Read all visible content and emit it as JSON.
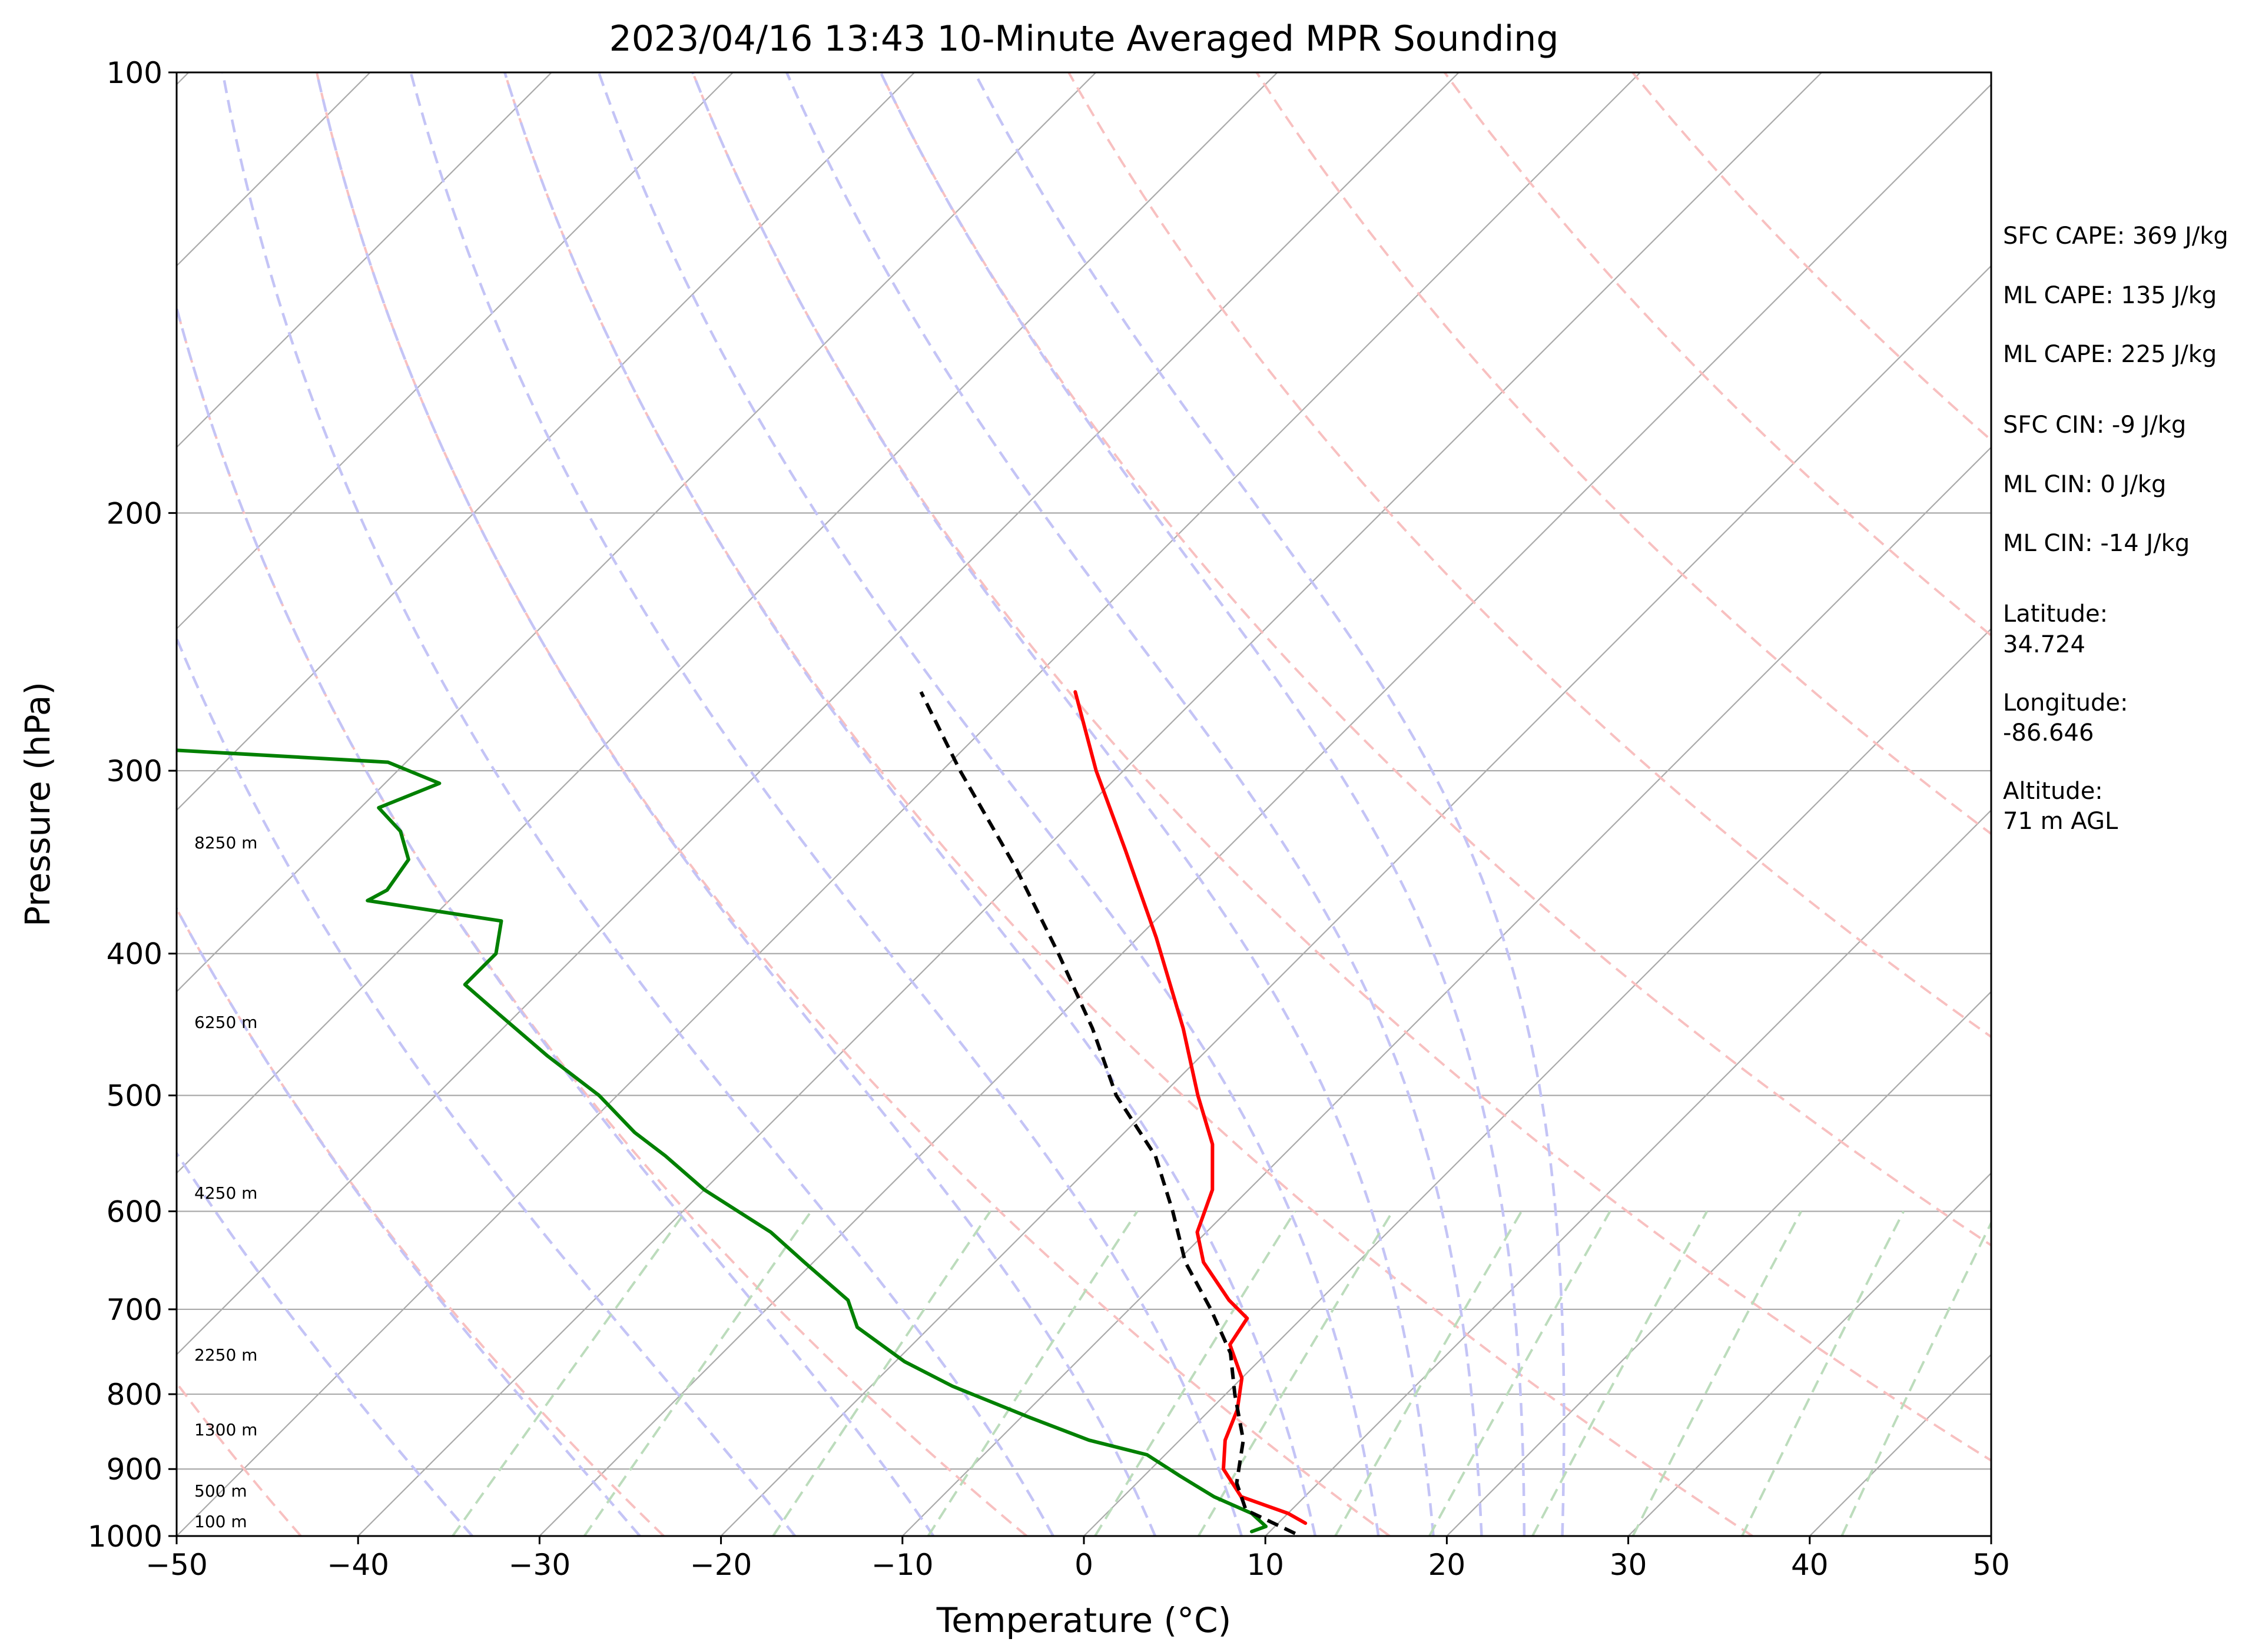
{
  "chart_data": {
    "type": "line",
    "subtype": "skew-t log-p sounding",
    "title": "2023/04/16 13:43 10-Minute Averaged MPR Sounding",
    "xlabel": "Temperature (°C)",
    "ylabel": "Pressure (hPa)",
    "xlim": [
      -50,
      50
    ],
    "ylim": [
      1000,
      100
    ],
    "y_scale": "log",
    "x_ticks": [
      "−50",
      "−40",
      "−30",
      "−20",
      "−10",
      "0",
      "10",
      "20",
      "30",
      "40",
      "50"
    ],
    "y_ticks": [
      "100",
      "200",
      "300",
      "400",
      "500",
      "600",
      "700",
      "800",
      "900",
      "1000"
    ],
    "grid": "horizontal isobars and skewed isotherms",
    "series": [
      {
        "role": "temperature",
        "color": "#ff0000",
        "points": [
          {
            "p": 265,
            "t": -47.0
          },
          {
            "p": 300,
            "t": -41.5
          },
          {
            "p": 340,
            "t": -35.5
          },
          {
            "p": 390,
            "t": -29.0
          },
          {
            "p": 450,
            "t": -22.5
          },
          {
            "p": 500,
            "t": -18.0
          },
          {
            "p": 540,
            "t": -14.5
          },
          {
            "p": 580,
            "t": -12.0
          },
          {
            "p": 620,
            "t": -10.5
          },
          {
            "p": 650,
            "t": -8.5
          },
          {
            "p": 690,
            "t": -5.0
          },
          {
            "p": 710,
            "t": -3.0
          },
          {
            "p": 740,
            "t": -2.5
          },
          {
            "p": 780,
            "t": 0.0
          },
          {
            "p": 820,
            "t": 1.5
          },
          {
            "p": 860,
            "t": 2.5
          },
          {
            "p": 900,
            "t": 4.0
          },
          {
            "p": 940,
            "t": 6.5
          },
          {
            "p": 965,
            "t": 10.0
          },
          {
            "p": 980,
            "t": 11.5
          }
        ]
      },
      {
        "role": "dewpoint",
        "color": "#008000",
        "points": [
          {
            "p": 288,
            "t": -99.0
          },
          {
            "p": 296,
            "t": -81.0
          },
          {
            "p": 306,
            "t": -77.0
          },
          {
            "p": 318,
            "t": -79.0
          },
          {
            "p": 330,
            "t": -76.5
          },
          {
            "p": 345,
            "t": -74.5
          },
          {
            "p": 362,
            "t": -74.0
          },
          {
            "p": 368,
            "t": -74.5
          },
          {
            "p": 380,
            "t": -66.0
          },
          {
            "p": 400,
            "t": -64.5
          },
          {
            "p": 420,
            "t": -64.5
          },
          {
            "p": 440,
            "t": -61.0
          },
          {
            "p": 470,
            "t": -56.0
          },
          {
            "p": 500,
            "t": -51.0
          },
          {
            "p": 530,
            "t": -47.0
          },
          {
            "p": 550,
            "t": -44.0
          },
          {
            "p": 580,
            "t": -40.0
          },
          {
            "p": 620,
            "t": -34.0
          },
          {
            "p": 650,
            "t": -30.5
          },
          {
            "p": 690,
            "t": -26.0
          },
          {
            "p": 720,
            "t": -24.0
          },
          {
            "p": 760,
            "t": -19.5
          },
          {
            "p": 790,
            "t": -15.5
          },
          {
            "p": 830,
            "t": -9.5
          },
          {
            "p": 860,
            "t": -5.0
          },
          {
            "p": 880,
            "t": -1.0
          },
          {
            "p": 910,
            "t": 2.0
          },
          {
            "p": 940,
            "t": 5.0
          },
          {
            "p": 965,
            "t": 8.0
          },
          {
            "p": 985,
            "t": 9.5
          },
          {
            "p": 993,
            "t": 9.0
          }
        ]
      },
      {
        "role": "parcel profile",
        "color": "#000000",
        "style": "dashed",
        "points": [
          {
            "p": 996,
            "t": 11.5
          },
          {
            "p": 960,
            "t": 7.5
          },
          {
            "p": 920,
            "t": 5.5
          },
          {
            "p": 860,
            "t": 3.5
          },
          {
            "p": 800,
            "t": 0.5
          },
          {
            "p": 750,
            "t": -2.0
          },
          {
            "p": 700,
            "t": -5.5
          },
          {
            "p": 650,
            "t": -9.5
          },
          {
            "p": 600,
            "t": -13.0
          },
          {
            "p": 550,
            "t": -17.0
          },
          {
            "p": 500,
            "t": -22.5
          },
          {
            "p": 450,
            "t": -27.5
          },
          {
            "p": 400,
            "t": -33.5
          },
          {
            "p": 350,
            "t": -40.5
          },
          {
            "p": 300,
            "t": -49.0
          },
          {
            "p": 265,
            "t": -55.5
          }
        ]
      }
    ],
    "dry_adiabats_K": [
      230,
      250,
      270,
      290,
      310,
      330,
      350,
      370,
      390,
      410,
      430
    ],
    "moist_adiabats_theta_e_K": [
      240,
      250,
      260,
      270,
      280,
      290,
      300,
      310,
      320,
      330,
      340,
      350,
      360
    ],
    "mixing_ratio_lines_g_per_kg": [
      0.2,
      0.4,
      1,
      2,
      4,
      6,
      10,
      14,
      20,
      28,
      40,
      55
    ],
    "colors": {
      "temperature": "#ff0000",
      "dewpoint": "#008000",
      "parcel": "#000000",
      "dry_adiabat": "#f8c0c0",
      "moist_adiabat": "#c4c4f6",
      "mixing_ratio": "#bcdcbc",
      "grid": "#aaaaaa"
    }
  },
  "height_labels": [
    "8250 m",
    "6250 m",
    "4250 m",
    "2250 m",
    "1300 m",
    "500 m",
    "100 m"
  ],
  "info": {
    "sfc_cape": "SFC CAPE: 369 J/kg",
    "ml_cape_1": "ML CAPE: 135 J/kg",
    "ml_cape_2": "ML CAPE: 225 J/kg",
    "sfc_cin": "SFC CIN: -9 J/kg",
    "ml_cin_1": "ML CIN: 0 J/kg",
    "ml_cin_2": "ML CIN: -14 J/kg",
    "latitude_label": "Latitude:",
    "latitude_value": "34.724",
    "longitude_label": "Longitude:",
    "longitude_value": "-86.646",
    "altitude_label": "Altitude:",
    "altitude_value": "71 m AGL"
  }
}
